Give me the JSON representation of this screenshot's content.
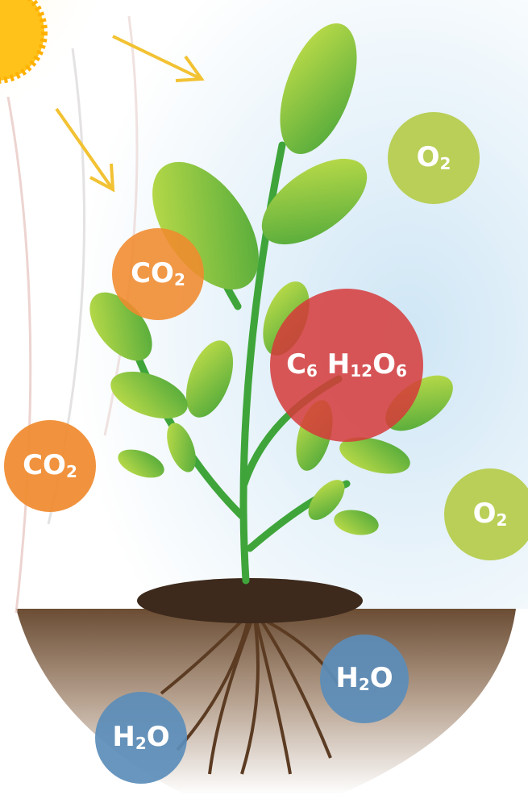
{
  "molecules": [
    {
      "parts": [
        {
          "base": "O",
          "sub": "2"
        }
      ]
    },
    {
      "parts": [
        {
          "base": "CO",
          "sub": "2"
        }
      ]
    },
    {
      "parts": [
        {
          "base": "C",
          "sub": "6"
        },
        {
          "base": " H",
          "sub": "12"
        },
        {
          "base": "O",
          "sub": "6"
        }
      ]
    },
    {
      "parts": [
        {
          "base": "CO",
          "sub": "2"
        }
      ]
    },
    {
      "parts": [
        {
          "base": "O",
          "sub": "2"
        }
      ]
    },
    {
      "parts": [
        {
          "base": "H",
          "sub": "2"
        },
        {
          "base": "O"
        }
      ]
    },
    {
      "parts": [
        {
          "base": "H",
          "sub": "2"
        },
        {
          "base": "O"
        }
      ]
    }
  ]
}
